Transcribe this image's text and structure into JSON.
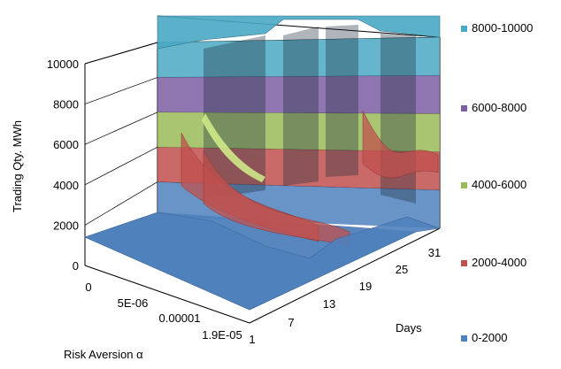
{
  "chart_data": {
    "type": "surface",
    "zlabel": "Trading Qty. MWh",
    "xlabel": "Risk Aversion α",
    "ylabel": "Days",
    "z_ticks": [
      "0",
      "2000",
      "4000",
      "6000",
      "8000",
      "10000"
    ],
    "zlim": [
      0,
      10000
    ],
    "x_ticks": [
      "0",
      "5E-06",
      "0.00001",
      "1.9E-05"
    ],
    "y_ticks": [
      "1",
      "7",
      "13",
      "19",
      "25",
      "31"
    ],
    "legend_position": "right",
    "bands": [
      {
        "label": "8000-10000",
        "range": [
          8000,
          10000
        ],
        "color": "#4aa9c4"
      },
      {
        "label": "6000-8000",
        "range": [
          6000,
          8000
        ],
        "color": "#7c5ea3"
      },
      {
        "label": "4000-6000",
        "range": [
          4000,
          6000
        ],
        "color": "#9bbb59"
      },
      {
        "label": "2000-4000",
        "range": [
          2000,
          4000
        ],
        "color": "#c0504d"
      },
      {
        "label": "0-2000",
        "range": [
          0,
          2000
        ],
        "color": "#4f81bd"
      }
    ]
  }
}
